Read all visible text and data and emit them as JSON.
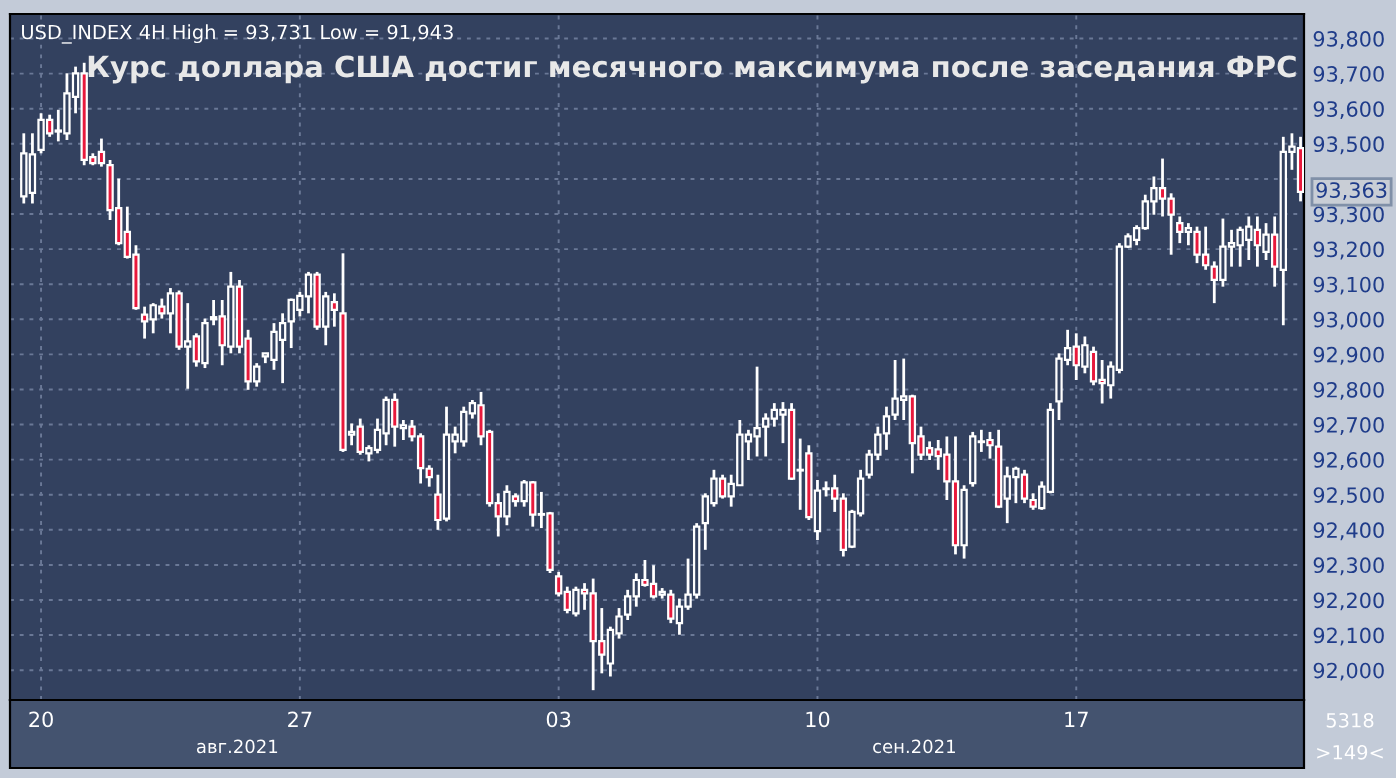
{
  "chart_data": {
    "type": "candlestick",
    "title": "Курс доллара США достиг месячного максимума после заседания ФРС",
    "subtitle": "USD_INDEX 4H High = 93,731 Low = 91,943",
    "annotations": [
      "авг.2021",
      "сен.2021",
      "5318",
      ">149<",
      "93,363"
    ],
    "categories": [
      null,
      null,
      "20",
      null,
      null,
      null,
      null,
      null,
      null,
      null,
      null,
      null,
      null,
      null,
      null,
      null,
      null,
      null,
      null,
      null,
      null,
      null,
      null,
      null,
      null,
      null,
      null,
      null,
      null,
      null,
      null,
      null,
      "27",
      null,
      null,
      null,
      null,
      null,
      null,
      null,
      null,
      null,
      null,
      null,
      null,
      null,
      null,
      null,
      null,
      null,
      null,
      null,
      null,
      null,
      null,
      null,
      null,
      null,
      null,
      null,
      null,
      null,
      "03",
      null,
      null,
      null,
      null,
      null,
      null,
      null,
      null,
      null,
      null,
      null,
      null,
      null,
      null,
      null,
      null,
      null,
      null,
      null,
      null,
      null,
      null,
      null,
      null,
      null,
      null,
      null,
      null,
      null,
      "10",
      null,
      null,
      null,
      null,
      null,
      null,
      null,
      null,
      null,
      null,
      null,
      null,
      null,
      null,
      null,
      null,
      null,
      null,
      null,
      null,
      null,
      null,
      null,
      null,
      null,
      null,
      null,
      null,
      null,
      "17",
      null,
      null,
      null,
      null,
      null,
      null,
      null,
      null,
      null,
      null,
      null,
      null,
      null,
      null,
      null,
      null,
      null,
      null,
      null,
      null,
      null,
      null,
      null,
      null,
      null,
      null
    ],
    "ohlc": [
      [
        93350,
        93530,
        93330,
        93473
      ],
      [
        93360,
        93530,
        93330,
        93470
      ],
      [
        93483,
        93587,
        93473,
        93568
      ],
      [
        93568,
        93583,
        93520,
        93530
      ],
      [
        93535,
        93597,
        93507,
        93538
      ],
      [
        93530,
        93701,
        93511,
        93644
      ],
      [
        93634,
        93720,
        93587,
        93701
      ],
      [
        93701,
        93731,
        93439,
        93454
      ],
      [
        93462,
        93473,
        93439,
        93445
      ],
      [
        93477,
        93515,
        93435,
        93445
      ],
      [
        93439,
        93454,
        93283,
        93311
      ],
      [
        93317,
        93401,
        93211,
        93217
      ],
      [
        93249,
        93321,
        93173,
        93178
      ],
      [
        93184,
        93211,
        93027,
        93032
      ],
      [
        93013,
        93036,
        92945,
        92994
      ],
      [
        93000,
        93046,
        92960,
        93040
      ],
      [
        93036,
        93059,
        93002,
        93017
      ],
      [
        93017,
        93089,
        92960,
        93074
      ],
      [
        93074,
        93082,
        92913,
        92922
      ],
      [
        92922,
        93046,
        92802,
        92937
      ],
      [
        92951,
        92960,
        92865,
        92880
      ],
      [
        92875,
        93002,
        92861,
        92989
      ],
      [
        93000,
        93055,
        92983,
        93006
      ],
      [
        93008,
        93055,
        92869,
        92926
      ],
      [
        92922,
        93135,
        92903,
        93093
      ],
      [
        93093,
        93112,
        92903,
        92922
      ],
      [
        92945,
        92970,
        92799,
        92823
      ],
      [
        92823,
        92875,
        92808,
        92865
      ],
      [
        92894,
        92903,
        92875,
        92903
      ],
      [
        92884,
        92989,
        92856,
        92964
      ],
      [
        92941,
        93017,
        92818,
        92989
      ],
      [
        92994,
        93059,
        92918,
        93055
      ],
      [
        93027,
        93078,
        93008,
        93067
      ],
      [
        93065,
        93135,
        93017,
        93127
      ],
      [
        93127,
        93135,
        92970,
        92979
      ],
      [
        92979,
        93078,
        92926,
        93065
      ],
      [
        93049,
        93074,
        92979,
        93027
      ],
      [
        93017,
        93188,
        92622,
        92628
      ],
      [
        92671,
        92703,
        92641,
        92679
      ],
      [
        92694,
        92717,
        92614,
        92622
      ],
      [
        92618,
        92641,
        92595,
        92633
      ],
      [
        92628,
        92717,
        92618,
        92685
      ],
      [
        92675,
        92780,
        92641,
        92770
      ],
      [
        92770,
        92789,
        92637,
        92694
      ],
      [
        92690,
        92713,
        92656,
        92698
      ],
      [
        92694,
        92713,
        92652,
        92666
      ],
      [
        92666,
        92675,
        92532,
        92576
      ],
      [
        92574,
        92584,
        92523,
        92550
      ],
      [
        92500,
        92557,
        92400,
        92428
      ],
      [
        92432,
        92751,
        92424,
        92671
      ],
      [
        92652,
        92694,
        92618,
        92671
      ],
      [
        92652,
        92751,
        92637,
        92736
      ],
      [
        92732,
        92770,
        92717,
        92761
      ],
      [
        92755,
        92793,
        92641,
        92666
      ],
      [
        92679,
        92685,
        92466,
        92476
      ],
      [
        92476,
        92504,
        92381,
        92438
      ],
      [
        92438,
        92527,
        92413,
        92508
      ],
      [
        92495,
        92504,
        92466,
        92482
      ],
      [
        92482,
        92542,
        92466,
        92535
      ],
      [
        92535,
        92539,
        92409,
        92443
      ],
      [
        92443,
        92508,
        92405,
        92445
      ],
      [
        92447,
        92451,
        92277,
        92286
      ],
      [
        92267,
        92280,
        92210,
        92219
      ],
      [
        92223,
        92238,
        92162,
        92172
      ],
      [
        92162,
        92238,
        92153,
        92229
      ],
      [
        92229,
        92248,
        92172,
        92219
      ],
      [
        92219,
        92261,
        91943,
        92083
      ],
      [
        92083,
        92177,
        91991,
        92044
      ],
      [
        92019,
        92124,
        91982,
        92115
      ],
      [
        92105,
        92177,
        92090,
        92153
      ],
      [
        92158,
        92229,
        92143,
        92210
      ],
      [
        92210,
        92276,
        92181,
        92257
      ],
      [
        92257,
        92314,
        92238,
        92243
      ],
      [
        92246,
        92299,
        92204,
        92210
      ],
      [
        92215,
        92234,
        92204,
        92223
      ],
      [
        92215,
        92229,
        92134,
        92147
      ],
      [
        92134,
        92204,
        92101,
        92181
      ],
      [
        92181,
        92318,
        92172,
        92215
      ],
      [
        92215,
        92419,
        92204,
        92409
      ],
      [
        92419,
        92504,
        92343,
        92495
      ],
      [
        92476,
        92571,
        92466,
        92546
      ],
      [
        92546,
        92557,
        92489,
        92495
      ],
      [
        92495,
        92557,
        92466,
        92531
      ],
      [
        92527,
        92713,
        92527,
        92671
      ],
      [
        92652,
        92685,
        92599,
        92671
      ],
      [
        92666,
        92865,
        92609,
        92690
      ],
      [
        92694,
        92732,
        92609,
        92717
      ],
      [
        92717,
        92761,
        92694,
        92742
      ],
      [
        92728,
        92764,
        92647,
        92742
      ],
      [
        92742,
        92761,
        92542,
        92546
      ],
      [
        92569,
        92660,
        92457,
        92571
      ],
      [
        92618,
        92641,
        92428,
        92436
      ],
      [
        92396,
        92542,
        92371,
        92512
      ],
      [
        92516,
        92538,
        92495,
        92518
      ],
      [
        92518,
        92557,
        92451,
        92489
      ],
      [
        92489,
        92504,
        92324,
        92343
      ],
      [
        92352,
        92457,
        92348,
        92451
      ],
      [
        92447,
        92571,
        92438,
        92546
      ],
      [
        92557,
        92628,
        92546,
        92614
      ],
      [
        92614,
        92694,
        92599,
        92671
      ],
      [
        92675,
        92751,
        92628,
        92723
      ],
      [
        92728,
        92884,
        92713,
        92774
      ],
      [
        92770,
        92888,
        92713,
        92780
      ],
      [
        92780,
        92785,
        92561,
        92647
      ],
      [
        92666,
        92694,
        92599,
        92614
      ],
      [
        92633,
        92652,
        92599,
        92614
      ],
      [
        92629,
        92656,
        92571,
        92610
      ],
      [
        92614,
        92666,
        92485,
        92538
      ],
      [
        92538,
        92666,
        92330,
        92356
      ],
      [
        92356,
        92527,
        92318,
        92514
      ],
      [
        92533,
        92679,
        92523,
        92666
      ],
      [
        92650,
        92685,
        92622,
        92652
      ],
      [
        92656,
        92679,
        92603,
        92641
      ],
      [
        92637,
        92685,
        92462,
        92466
      ],
      [
        92489,
        92580,
        92419,
        92552
      ],
      [
        92550,
        92580,
        92476,
        92574
      ],
      [
        92557,
        92571,
        92476,
        92489
      ],
      [
        92485,
        92504,
        92457,
        92466
      ],
      [
        92462,
        92538,
        92457,
        92523
      ],
      [
        92508,
        92761,
        92504,
        92742
      ],
      [
        92766,
        92903,
        92713,
        92888
      ],
      [
        92884,
        92970,
        92869,
        92918
      ],
      [
        92922,
        92960,
        92827,
        92869
      ],
      [
        92865,
        92951,
        92846,
        92926
      ],
      [
        92907,
        92922,
        92812,
        92823
      ],
      [
        92827,
        92884,
        92760,
        92818
      ],
      [
        92812,
        92880,
        92774,
        92865
      ],
      [
        92856,
        93217,
        92846,
        93207
      ],
      [
        93207,
        93245,
        93203,
        93236
      ],
      [
        93226,
        93268,
        93211,
        93260
      ],
      [
        93260,
        93355,
        93255,
        93336
      ],
      [
        93336,
        93407,
        93298,
        93374
      ],
      [
        93374,
        93458,
        93293,
        93344
      ],
      [
        93344,
        93359,
        93184,
        93298
      ],
      [
        93274,
        93293,
        93217,
        93249
      ],
      [
        93249,
        93274,
        93211,
        93260
      ],
      [
        93249,
        93264,
        93160,
        93184
      ],
      [
        93184,
        93264,
        93141,
        93154
      ],
      [
        93150,
        93165,
        93046,
        93112
      ],
      [
        93112,
        93287,
        93093,
        93207
      ],
      [
        93207,
        93255,
        93150,
        93217
      ],
      [
        93211,
        93264,
        93150,
        93255
      ],
      [
        93226,
        93293,
        93169,
        93264
      ],
      [
        93255,
        93293,
        93150,
        93211
      ],
      [
        93192,
        93274,
        93169,
        93241
      ],
      [
        93241,
        93293,
        93093,
        93150
      ],
      [
        93141,
        93520,
        92983,
        93477
      ],
      [
        93477,
        93530,
        93426,
        93492
      ],
      [
        93488,
        93520,
        93336,
        93363
      ]
    ],
    "ylim": [
      91915,
      93870
    ],
    "yticks": [
      {
        "value": 92000,
        "label": "92,000"
      },
      {
        "value": 92100,
        "label": "92,100"
      },
      {
        "value": 92200,
        "label": "92,200"
      },
      {
        "value": 92300,
        "label": "92,300"
      },
      {
        "value": 92400,
        "label": "92,400"
      },
      {
        "value": 92500,
        "label": "92,500"
      },
      {
        "value": 92600,
        "label": "92,600"
      },
      {
        "value": 92700,
        "label": "92,700"
      },
      {
        "value": 92800,
        "label": "92,800"
      },
      {
        "value": 92900,
        "label": "92,900"
      },
      {
        "value": 93000,
        "label": "93,000"
      },
      {
        "value": 93100,
        "label": "93,100"
      },
      {
        "value": 93200,
        "label": "93,200"
      },
      {
        "value": 93300,
        "label": "93,300"
      },
      {
        "value": 93400,
        "label": null
      },
      {
        "value": 93500,
        "label": "93,500"
      },
      {
        "value": 93600,
        "label": "93,600"
      },
      {
        "value": 93700,
        "label": "93,700"
      },
      {
        "value": 93800,
        "label": "93,800"
      }
    ],
    "grid": true
  }
}
